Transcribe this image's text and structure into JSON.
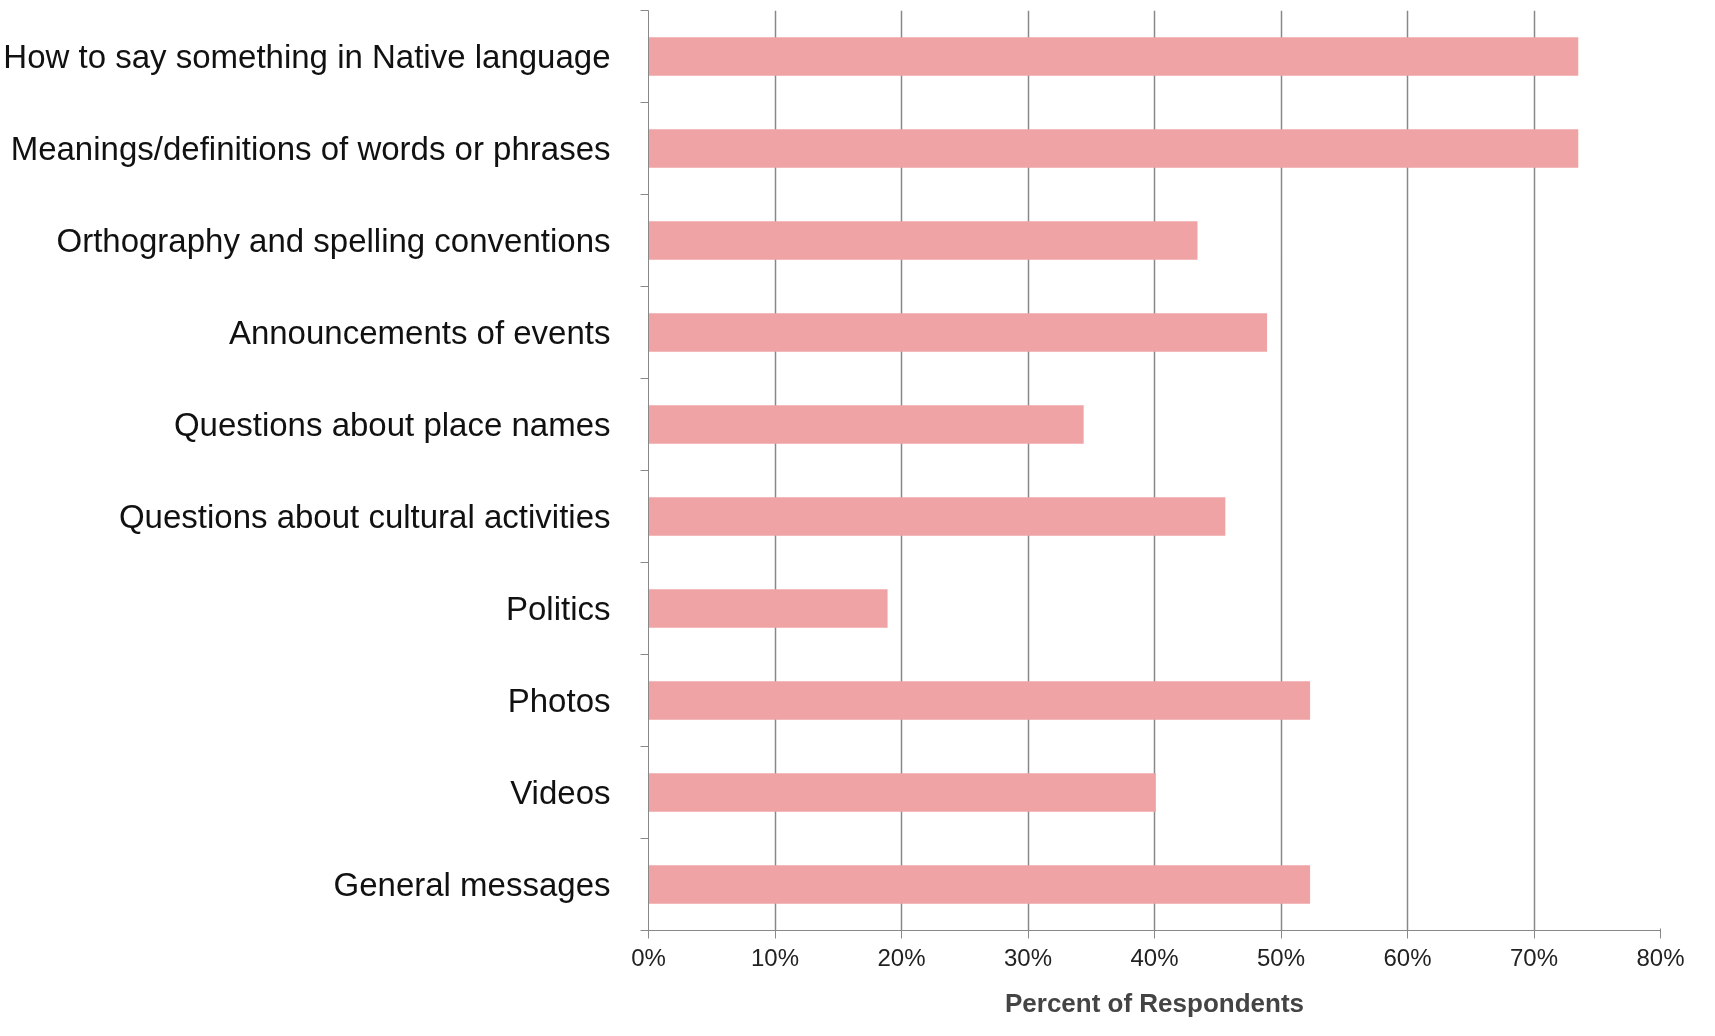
{
  "chart_data": {
    "type": "bar",
    "orientation": "horizontal",
    "xlabel": "Percent of Respondents",
    "categories": [
      "How to say something in Native language",
      "Meanings/definitions of words or phrases",
      "Orthography and spelling conventions",
      "Announcements of events",
      "Questions about place names",
      "Questions about cultural activities",
      "Politics",
      "Photos",
      "Videos",
      "General messages"
    ],
    "values": [
      73.5,
      73.5,
      43.4,
      48.9,
      34.4,
      45.6,
      18.9,
      52.3,
      40.1,
      52.3
    ],
    "color": "#f0a3a4",
    "xlim": [
      0,
      80
    ],
    "xticks": [
      {
        "value": 0,
        "label": "0%"
      },
      {
        "value": 10,
        "label": "10%"
      },
      {
        "value": 20,
        "label": "20%"
      },
      {
        "value": 30,
        "label": "30%"
      },
      {
        "value": 40,
        "label": "40%"
      },
      {
        "value": 50,
        "label": "50%"
      },
      {
        "value": 60,
        "label": "60%"
      },
      {
        "value": 70,
        "label": "70%"
      },
      {
        "value": 80,
        "label": "80%"
      }
    ],
    "grid": "x"
  }
}
